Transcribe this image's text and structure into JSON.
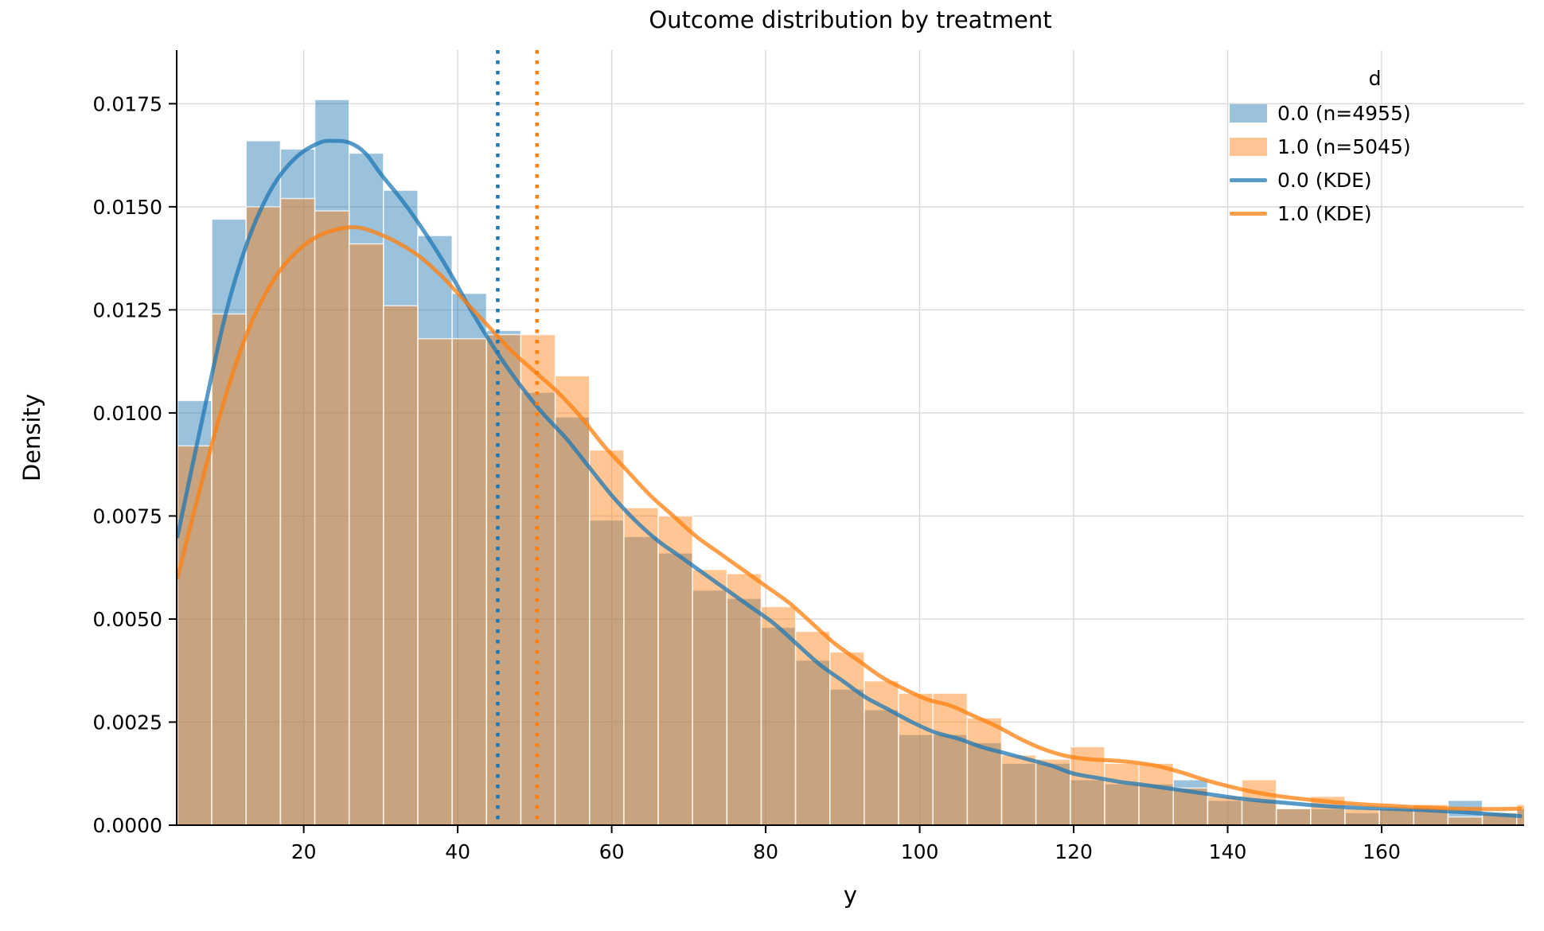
{
  "title": "Outcome distribution by treatment",
  "xlabel": "y",
  "ylabel": "Density",
  "legend": {
    "title": "d",
    "entries": [
      {
        "label": "0.0 (n=4955)",
        "type": "patch",
        "swatch": "rgba(31,119,180,0.45)"
      },
      {
        "label": "1.0 (n=5045)",
        "type": "patch",
        "swatch": "rgba(255,127,14,0.45)"
      },
      {
        "label": "0.0 (KDE)",
        "type": "line",
        "swatch": "rgba(31,119,180,0.75)"
      },
      {
        "label": "1.0 (KDE)",
        "type": "line",
        "swatch": "rgba(255,127,14,0.75)"
      }
    ]
  },
  "chart_data": {
    "type": "histogram+kde",
    "title": "Outcome distribution by treatment",
    "xlabel": "y",
    "ylabel": "Density",
    "x_axis": {
      "lim": [
        3.5,
        178.5
      ],
      "ticks": [
        20,
        40,
        60,
        80,
        100,
        120,
        140,
        160
      ],
      "grid": true
    },
    "y_axis": {
      "lim": [
        0,
        0.0188
      ],
      "ticks": [
        0.0,
        0.0025,
        0.005,
        0.0075,
        0.01,
        0.0125,
        0.015,
        0.0175
      ],
      "grid": true,
      "tick_decimals": 4
    },
    "bins": {
      "start": 3.6,
      "width": 4.46,
      "count": 40
    },
    "colors": {
      "blue": "#1f77b4",
      "orange": "#ff7f0e",
      "bar_alpha": 0.45,
      "line_alpha": 0.75,
      "bar_edge": "rgba(255,255,255,0.75)",
      "grid": "#d9d9d9"
    },
    "series": [
      {
        "name": "0.0 (n=4955)",
        "color": "#1f77b4",
        "mean_line": 45.2,
        "hist": [
          0.0103,
          0.0147,
          0.0166,
          0.0164,
          0.0176,
          0.0163,
          0.0154,
          0.0143,
          0.0129,
          0.012,
          0.0105,
          0.0099,
          0.0074,
          0.007,
          0.0066,
          0.0057,
          0.0055,
          0.0048,
          0.004,
          0.0033,
          0.0028,
          0.0022,
          0.0022,
          0.002,
          0.0015,
          0.0015,
          0.0011,
          0.001,
          0.001,
          0.0011,
          0.0006,
          0.0006,
          0.0004,
          0.0004,
          0.0003,
          0.0004,
          0.0004,
          0.0006,
          0.0003,
          0.0004
        ],
        "kde": [
          [
            3.6,
            0.007
          ],
          [
            7,
            0.01
          ],
          [
            10,
            0.0125
          ],
          [
            13,
            0.0143
          ],
          [
            16,
            0.0155
          ],
          [
            19,
            0.0162
          ],
          [
            22,
            0.01655
          ],
          [
            24,
            0.0166
          ],
          [
            26,
            0.01655
          ],
          [
            28,
            0.0163
          ],
          [
            30,
            0.0158
          ],
          [
            33,
            0.0151
          ],
          [
            36,
            0.0143
          ],
          [
            39,
            0.0134
          ],
          [
            42,
            0.0124
          ],
          [
            45,
            0.0115
          ],
          [
            48,
            0.0107
          ],
          [
            51,
            0.01
          ],
          [
            54,
            0.0094
          ],
          [
            57,
            0.0087
          ],
          [
            60,
            0.008
          ],
          [
            63,
            0.0074
          ],
          [
            66,
            0.0069
          ],
          [
            69,
            0.0065
          ],
          [
            72,
            0.0061
          ],
          [
            75,
            0.0057
          ],
          [
            78,
            0.0053
          ],
          [
            81,
            0.0049
          ],
          [
            84,
            0.0044
          ],
          [
            87,
            0.0039
          ],
          [
            90,
            0.0035
          ],
          [
            93,
            0.0031
          ],
          [
            96,
            0.0028
          ],
          [
            99,
            0.0025
          ],
          [
            102,
            0.00225
          ],
          [
            105,
            0.0021
          ],
          [
            108,
            0.0019
          ],
          [
            111,
            0.00175
          ],
          [
            114,
            0.0016
          ],
          [
            117,
            0.00145
          ],
          [
            120,
            0.00125
          ],
          [
            123,
            0.00115
          ],
          [
            126,
            0.00105
          ],
          [
            129,
            0.00098
          ],
          [
            132,
            0.0009
          ],
          [
            135,
            0.00082
          ],
          [
            138,
            0.00074
          ],
          [
            141,
            0.00066
          ],
          [
            144,
            0.0006
          ],
          [
            147,
            0.00055
          ],
          [
            150,
            0.0005
          ],
          [
            153,
            0.00046
          ],
          [
            156,
            0.00043
          ],
          [
            159,
            0.00041
          ],
          [
            162,
            0.00039
          ],
          [
            165,
            0.00037
          ],
          [
            168,
            0.00034
          ],
          [
            171,
            0.00031
          ],
          [
            174,
            0.00027
          ],
          [
            178,
            0.00022
          ]
        ]
      },
      {
        "name": "1.0 (n=5045)",
        "color": "#ff7f0e",
        "mean_line": 50.3,
        "hist": [
          0.0092,
          0.0124,
          0.015,
          0.0152,
          0.0149,
          0.0141,
          0.0126,
          0.0118,
          0.0118,
          0.0119,
          0.0119,
          0.0109,
          0.0091,
          0.0077,
          0.0075,
          0.0062,
          0.0061,
          0.0053,
          0.0047,
          0.0042,
          0.0035,
          0.0032,
          0.0032,
          0.0026,
          0.0017,
          0.0016,
          0.0019,
          0.0015,
          0.0015,
          0.0009,
          0.0007,
          0.0011,
          0.0004,
          0.0007,
          0.0004,
          0.0004,
          0.0005,
          0.0002,
          0.0003,
          0.0005
        ],
        "kde": [
          [
            3.6,
            0.006
          ],
          [
            7,
            0.0085
          ],
          [
            10,
            0.0105
          ],
          [
            13,
            0.0121
          ],
          [
            16,
            0.0132
          ],
          [
            19,
            0.0139
          ],
          [
            22,
            0.0143
          ],
          [
            25,
            0.01448
          ],
          [
            27,
            0.0145
          ],
          [
            29,
            0.0144
          ],
          [
            32,
            0.01415
          ],
          [
            35,
            0.0138
          ],
          [
            38,
            0.0133
          ],
          [
            41,
            0.0127
          ],
          [
            44,
            0.0121
          ],
          [
            47,
            0.0115
          ],
          [
            50,
            0.011
          ],
          [
            53,
            0.0105
          ],
          [
            56,
            0.0099
          ],
          [
            59,
            0.0092
          ],
          [
            62,
            0.0086
          ],
          [
            65,
            0.008
          ],
          [
            68,
            0.0075
          ],
          [
            71,
            0.007
          ],
          [
            74,
            0.0066
          ],
          [
            77,
            0.0062
          ],
          [
            80,
            0.0058
          ],
          [
            83,
            0.0054
          ],
          [
            86,
            0.0049
          ],
          [
            89,
            0.0044
          ],
          [
            92,
            0.004
          ],
          [
            95,
            0.0036
          ],
          [
            98,
            0.0033
          ],
          [
            101,
            0.00305
          ],
          [
            104,
            0.0029
          ],
          [
            107,
            0.00265
          ],
          [
            110,
            0.0024
          ],
          [
            113,
            0.0021
          ],
          [
            116,
            0.00185
          ],
          [
            119,
            0.00168
          ],
          [
            122,
            0.0016
          ],
          [
            125,
            0.00157
          ],
          [
            128,
            0.00152
          ],
          [
            131,
            0.00143
          ],
          [
            134,
            0.00128
          ],
          [
            137,
            0.0011
          ],
          [
            140,
            0.00095
          ],
          [
            143,
            0.00082
          ],
          [
            146,
            0.00072
          ],
          [
            149,
            0.00065
          ],
          [
            152,
            0.00059
          ],
          [
            155,
            0.00054
          ],
          [
            158,
            0.0005
          ],
          [
            161,
            0.00047
          ],
          [
            164,
            0.00044
          ],
          [
            167,
            0.00042
          ],
          [
            170,
            0.0004
          ],
          [
            174,
            0.00039
          ],
          [
            178,
            0.0004
          ]
        ]
      }
    ]
  }
}
